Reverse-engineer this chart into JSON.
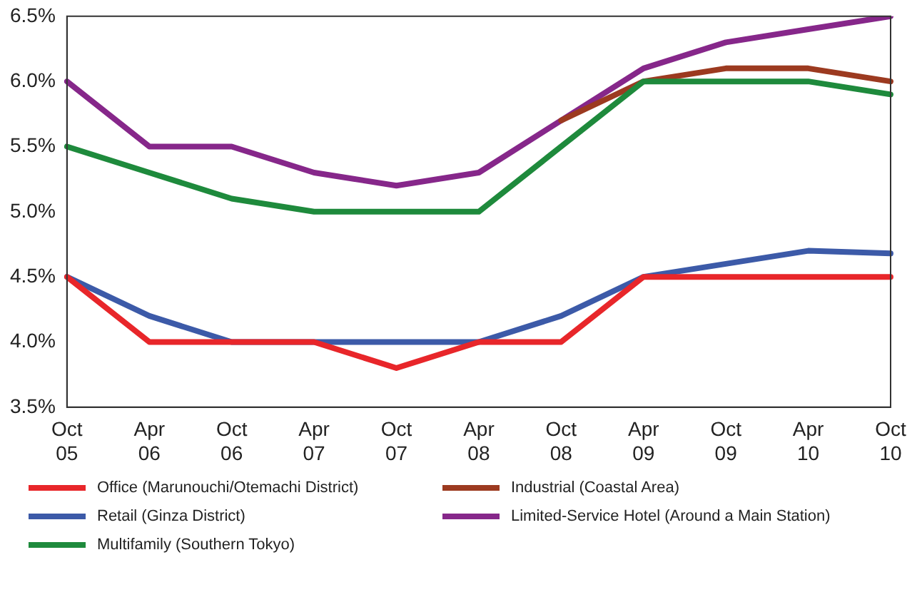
{
  "chart_data": {
    "type": "line",
    "categories": [
      "Oct 05",
      "Apr 06",
      "Oct 06",
      "Apr 07",
      "Oct 07",
      "Apr 08",
      "Oct 08",
      "Apr 09",
      "Oct 09",
      "Apr 10",
      "Oct 10"
    ],
    "series": [
      {
        "name": "Office (Marunouchi/Otemachi District)",
        "color": "#e8262a",
        "values": [
          4.5,
          4.0,
          4.0,
          4.0,
          3.8,
          4.0,
          4.0,
          4.5,
          4.5,
          4.5,
          4.5
        ]
      },
      {
        "name": "Retail (Ginza District)",
        "color": "#3c5aa8",
        "values": [
          4.5,
          4.2,
          4.0,
          4.0,
          4.0,
          4.0,
          4.2,
          4.5,
          4.6,
          4.7,
          4.68
        ]
      },
      {
        "name": "Multifamily (Southern Tokyo)",
        "color": "#1e8a3c",
        "values": [
          5.5,
          5.3,
          5.1,
          5.0,
          5.0,
          5.0,
          5.5,
          6.0,
          6.0,
          6.0,
          5.9
        ]
      },
      {
        "name": "Industrial (Coastal Area)",
        "color": "#9c3a20",
        "values": [
          null,
          null,
          null,
          null,
          null,
          null,
          5.7,
          6.0,
          6.1,
          6.1,
          6.0
        ]
      },
      {
        "name": "Limited-Service Hotel (Around a Main Station)",
        "color": "#86278a",
        "values": [
          6.0,
          5.5,
          5.5,
          5.3,
          5.2,
          5.3,
          5.7,
          6.1,
          6.3,
          6.4,
          6.5
        ]
      }
    ],
    "ylim": [
      3.5,
      6.5
    ],
    "yticks": [
      {
        "value": 3.5,
        "label": "3.5%"
      },
      {
        "value": 4.0,
        "label": "4.0%"
      },
      {
        "value": 4.5,
        "label": "4.5%"
      },
      {
        "value": 5.0,
        "label": "5.0%"
      },
      {
        "value": 5.5,
        "label": "5.5%"
      },
      {
        "value": 6.0,
        "label": "6.0%"
      },
      {
        "value": 6.5,
        "label": "6.5%"
      }
    ],
    "grid": false,
    "legend": "bottom",
    "marker": "none",
    "line_style": "solid"
  }
}
